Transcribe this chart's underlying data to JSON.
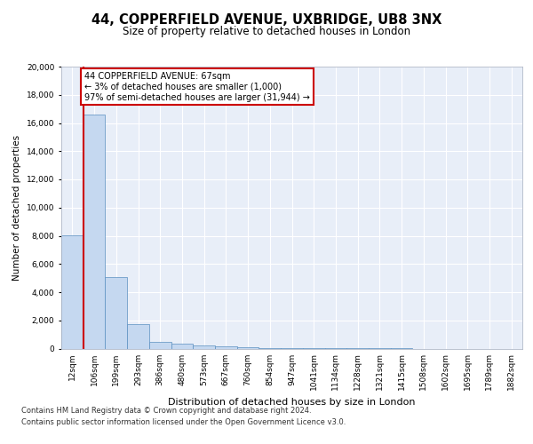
{
  "title1": "44, COPPERFIELD AVENUE, UXBRIDGE, UB8 3NX",
  "title2": "Size of property relative to detached houses in London",
  "xlabel": "Distribution of detached houses by size in London",
  "ylabel": "Number of detached properties",
  "categories": [
    "12sqm",
    "106sqm",
    "199sqm",
    "293sqm",
    "386sqm",
    "480sqm",
    "573sqm",
    "667sqm",
    "760sqm",
    "854sqm",
    "947sqm",
    "1041sqm",
    "1134sqm",
    "1228sqm",
    "1321sqm",
    "1415sqm",
    "1508sqm",
    "1602sqm",
    "1695sqm",
    "1789sqm",
    "1882sqm"
  ],
  "values": [
    8050,
    16600,
    5100,
    1750,
    500,
    340,
    205,
    150,
    95,
    58,
    18,
    8,
    4,
    2,
    1,
    1,
    0,
    0,
    0,
    0,
    0
  ],
  "bar_color": "#c5d8f0",
  "bar_edge_color": "#5a8fc0",
  "vline_color": "#cc0000",
  "annotation_text": "44 COPPERFIELD AVENUE: 67sqm\n← 3% of detached houses are smaller (1,000)\n97% of semi-detached houses are larger (31,944) →",
  "annotation_box_facecolor": "#ffffff",
  "annotation_box_edgecolor": "#cc0000",
  "footnote1": "Contains HM Land Registry data © Crown copyright and database right 2024.",
  "footnote2": "Contains public sector information licensed under the Open Government Licence v3.0.",
  "ylim": [
    0,
    20000
  ],
  "yticks": [
    0,
    2000,
    4000,
    6000,
    8000,
    10000,
    12000,
    14000,
    16000,
    18000,
    20000
  ],
  "bg_color": "#e8eef8",
  "fig_bg_color": "#ffffff",
  "grid_color": "#ffffff",
  "title1_fontsize": 10.5,
  "title2_fontsize": 8.5,
  "ylabel_fontsize": 7.5,
  "xlabel_fontsize": 8,
  "tick_fontsize": 6.5,
  "footnote_fontsize": 6,
  "annot_fontsize": 7
}
